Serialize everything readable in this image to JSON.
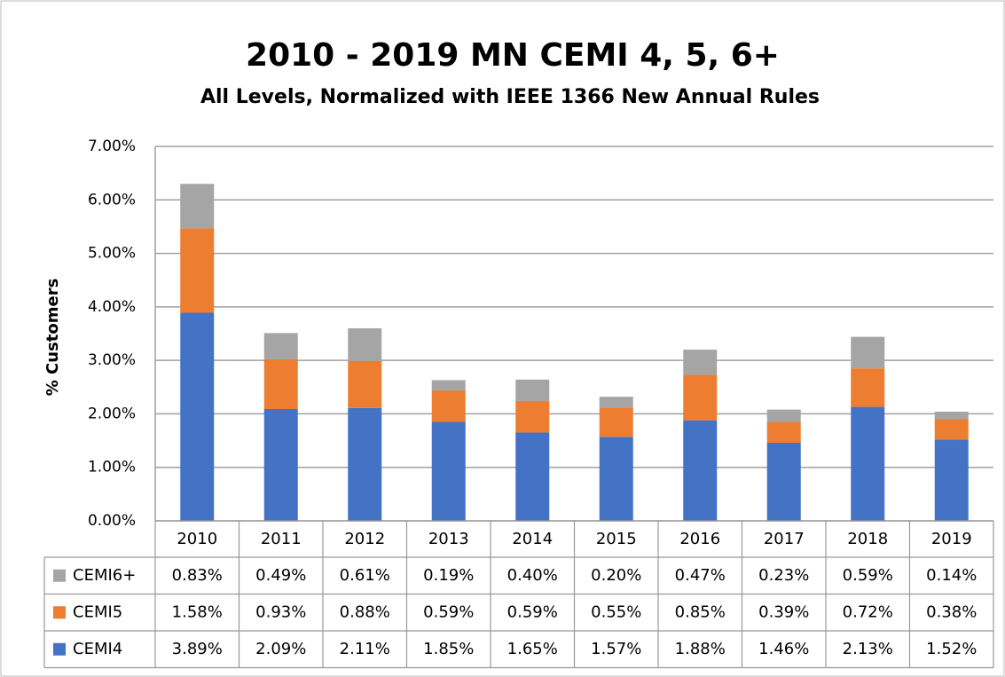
{
  "chart_data": {
    "type": "bar",
    "stacked": true,
    "title": "2010 - 2019 MN CEMI 4, 5, 6+",
    "subtitle": "All Levels, Normalized with IEEE 1366 New Annual Rules",
    "y_label": "% Customers",
    "categories": [
      "2010",
      "2011",
      "2012",
      "2013",
      "2014",
      "2015",
      "2016",
      "2017",
      "2018",
      "2019"
    ],
    "series": [
      {
        "name": "CEMI4",
        "color": "#4472c4",
        "values": [
          3.89,
          2.09,
          2.11,
          1.85,
          1.65,
          1.57,
          1.88,
          1.46,
          2.13,
          1.52
        ],
        "value_labels": [
          "3.89%",
          "2.09%",
          "2.11%",
          "1.85%",
          "1.65%",
          "1.57%",
          "1.88%",
          "1.46%",
          "2.13%",
          "1.52%"
        ]
      },
      {
        "name": "CEMI5",
        "color": "#ed7d31",
        "values": [
          1.58,
          0.93,
          0.88,
          0.59,
          0.59,
          0.55,
          0.85,
          0.39,
          0.72,
          0.38
        ],
        "value_labels": [
          "1.58%",
          "0.93%",
          "0.88%",
          "0.59%",
          "0.59%",
          "0.55%",
          "0.85%",
          "0.39%",
          "0.72%",
          "0.38%"
        ]
      },
      {
        "name": "CEMI6+",
        "color": "#a5a5a5",
        "values": [
          0.83,
          0.49,
          0.61,
          0.19,
          0.4,
          0.2,
          0.47,
          0.23,
          0.59,
          0.14
        ],
        "value_labels": [
          "0.83%",
          "0.49%",
          "0.61%",
          "0.19%",
          "0.40%",
          "0.20%",
          "0.47%",
          "0.23%",
          "0.59%",
          "0.14%"
        ]
      }
    ],
    "ylim": [
      0,
      7
    ],
    "yticks": [
      {
        "value": 0,
        "label": "0.00%"
      },
      {
        "value": 1,
        "label": "1.00%"
      },
      {
        "value": 2,
        "label": "2.00%"
      },
      {
        "value": 3,
        "label": "3.00%"
      },
      {
        "value": 4,
        "label": "4.00%"
      },
      {
        "value": 5,
        "label": "5.00%"
      },
      {
        "value": 6,
        "label": "6.00%"
      },
      {
        "value": 7,
        "label": "7.00%"
      }
    ],
    "grid": true,
    "data_table": true
  }
}
